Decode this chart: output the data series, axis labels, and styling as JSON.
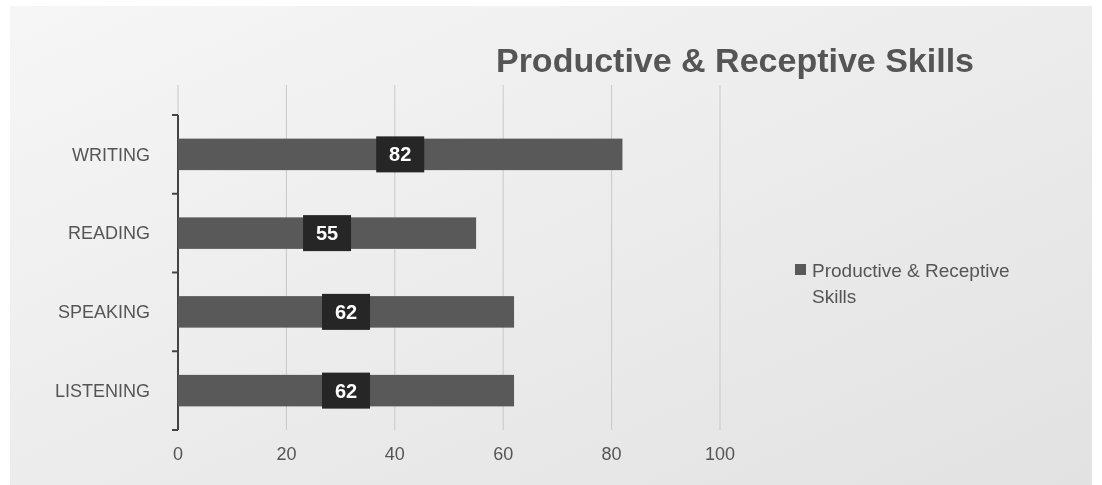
{
  "chart_data": {
    "type": "bar",
    "orientation": "horizontal",
    "title": "Productive & Receptive Skills",
    "categories": [
      "WRITING",
      "READING",
      "SPEAKING",
      "LISTENING"
    ],
    "series": [
      {
        "name": "Productive & Receptive Skills",
        "color": "#595959",
        "values": [
          82,
          55,
          62,
          62
        ]
      }
    ],
    "xlim": [
      0,
      100
    ],
    "xticks": [
      0,
      20,
      40,
      60,
      80,
      100
    ],
    "grid": "x",
    "legend": "right",
    "data_labels": true
  }
}
